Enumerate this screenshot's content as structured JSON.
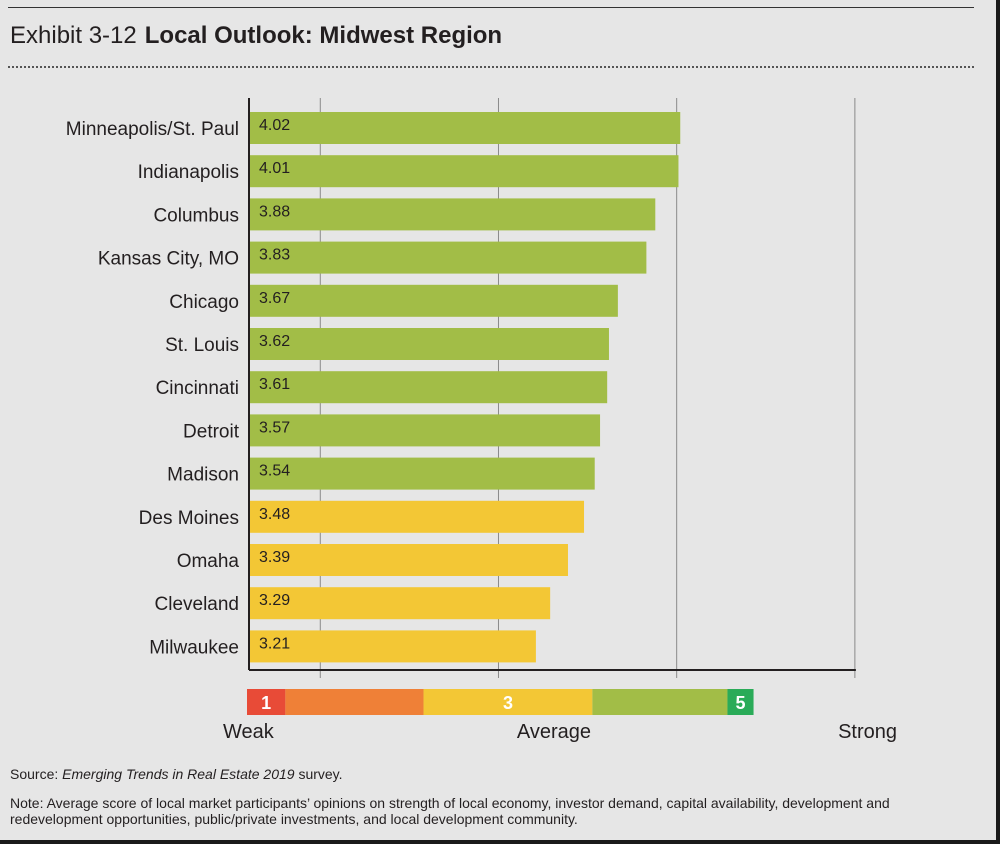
{
  "header": {
    "exhibit": "Exhibit 3-12",
    "title": "Local Outlook: Midwest Region"
  },
  "chart_data": {
    "type": "bar",
    "orientation": "horizontal",
    "title": "Local Outlook: Midwest Region",
    "categories": [
      "Minneapolis/St. Paul",
      "Indianapolis",
      "Columbus",
      "Kansas City, MO",
      "Chicago",
      "St. Louis",
      "Cincinnati",
      "Detroit",
      "Madison",
      "Des Moines",
      "Omaha",
      "Cleveland",
      "Milwaukee"
    ],
    "values": [
      4.02,
      4.01,
      3.88,
      3.83,
      3.67,
      3.62,
      3.61,
      3.57,
      3.54,
      3.48,
      3.39,
      3.29,
      3.21
    ],
    "value_labels": [
      "4.02",
      "4.01",
      "3.88",
      "3.83",
      "3.67",
      "3.62",
      "3.61",
      "3.57",
      "3.54",
      "3.48",
      "3.39",
      "3.29",
      "3.21"
    ],
    "xlim": [
      1.6,
      5
    ],
    "grid": true,
    "colors": {
      "above_3_5": "#a2bd47",
      "below_3_5": "#f3c735"
    },
    "scale_legend": {
      "segments": [
        {
          "from": 1.0,
          "to": 1.25,
          "color": "#e84b37",
          "label": "1"
        },
        {
          "from": 1.25,
          "to": 2.15,
          "color": "#ef8037",
          "label": ""
        },
        {
          "from": 2.15,
          "to": 3.25,
          "color": "#f3c735",
          "label": "3"
        },
        {
          "from": 3.25,
          "to": 4.13,
          "color": "#a2bd47",
          "label": ""
        },
        {
          "from": 4.13,
          "to": 4.3,
          "color": "#2aab58",
          "label": "5"
        }
      ],
      "labels": [
        {
          "text": "Weak",
          "at": 1.0
        },
        {
          "text": "Average",
          "at": 3.0
        },
        {
          "text": "Strong",
          "at": 5.0
        }
      ]
    }
  },
  "footer": {
    "source_prefix": "Source: ",
    "source_title": "Emerging Trends in Real Estate 2019",
    "source_suffix": " survey.",
    "note": "Note: Average score of local market participants’ opinions on strength of local economy, investor demand, capital availability, development and redevelopment opportunities, public/private investments, and local development community."
  }
}
